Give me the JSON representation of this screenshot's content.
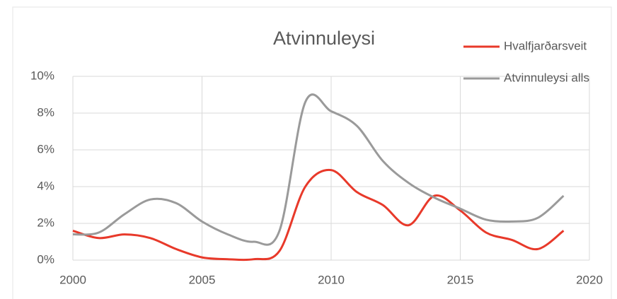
{
  "chart_data": {
    "type": "line",
    "title": "Atvinnuleysi",
    "x": [
      2000,
      2001,
      2002,
      2003,
      2004,
      2005,
      2006,
      2007,
      2008,
      2009,
      2010,
      2011,
      2012,
      2013,
      2014,
      2015,
      2016,
      2017,
      2018,
      2019
    ],
    "series": [
      {
        "name": "Hvalfjarðarsveit",
        "color": "#e8392a",
        "values": [
          1.6,
          1.2,
          1.4,
          1.2,
          0.6,
          0.15,
          0.05,
          0.05,
          0.5,
          4.0,
          4.9,
          3.7,
          3.0,
          1.9,
          3.5,
          2.7,
          1.5,
          1.1,
          0.6,
          1.6
        ]
      },
      {
        "name": "Atvinnuleysi alls",
        "color": "#9a9a9a",
        "values": [
          1.4,
          1.5,
          2.5,
          3.3,
          3.1,
          2.1,
          1.4,
          1.0,
          1.6,
          8.6,
          8.1,
          7.3,
          5.4,
          4.2,
          3.4,
          2.8,
          2.2,
          2.1,
          2.3,
          3.5
        ]
      }
    ],
    "xlim": [
      2000,
      2020
    ],
    "xticks": [
      2000,
      2005,
      2010,
      2015,
      2020
    ],
    "ylim": [
      0,
      10
    ],
    "yticks": [
      {
        "value": 0,
        "label": "0%"
      },
      {
        "value": 2,
        "label": "2%"
      },
      {
        "value": 4,
        "label": "4%"
      },
      {
        "value": 6,
        "label": "6%"
      },
      {
        "value": 8,
        "label": "8%"
      },
      {
        "value": 10,
        "label": "10%"
      }
    ],
    "grid": true,
    "legend": "top-right",
    "smooth": true
  }
}
